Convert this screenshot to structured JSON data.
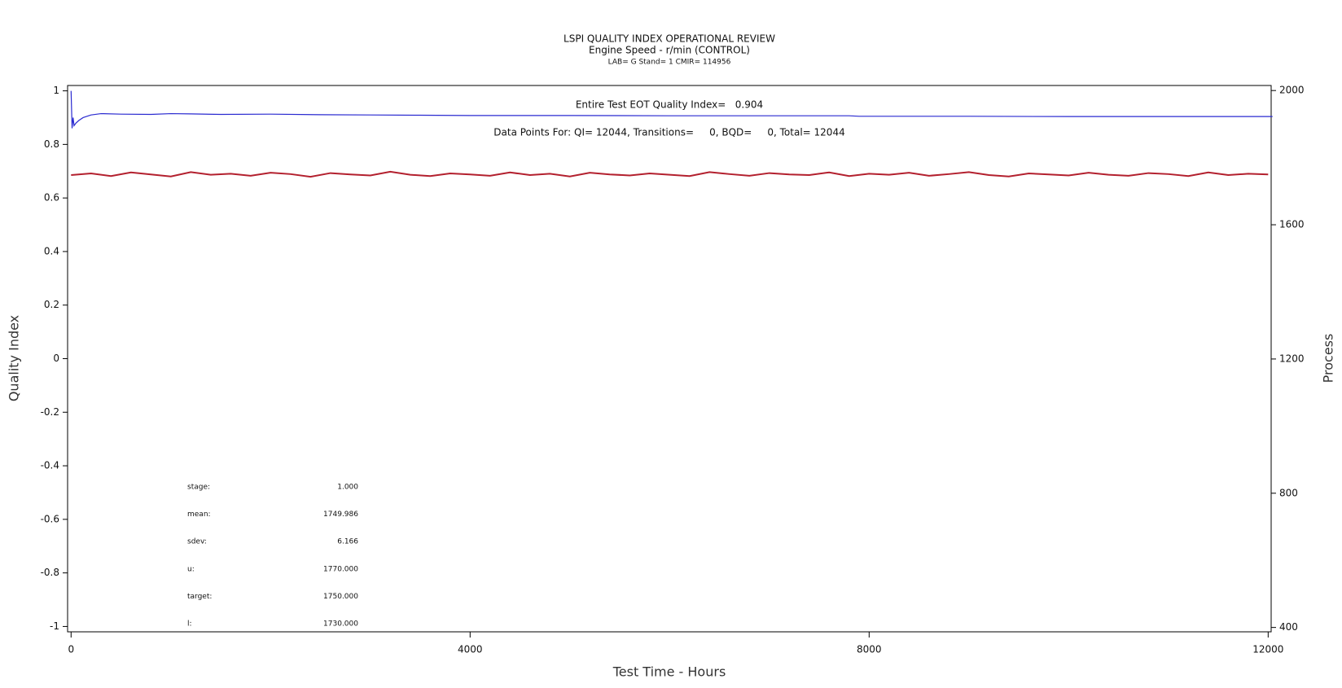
{
  "chart_data": {
    "type": "line",
    "title": "LSPI QUALITY INDEX OPERATIONAL REVIEW",
    "subtitle": "Engine Speed - r/min (CONTROL)",
    "caption": "LAB= G Stand= 1 CMIR= 114956",
    "annotations": [
      "Entire Test EOT Quality Index=   0.904",
      "Data Points For: QI= 12044, Transitions=     0, BQD=     0, Total= 12044"
    ],
    "stats": [
      {
        "label": "stage:",
        "value": "1.000"
      },
      {
        "label": "mean:",
        "value": "1749.986"
      },
      {
        "label": "sdev:",
        "value": "6.166"
      },
      {
        "label": "u:",
        "value": "1770.000"
      },
      {
        "label": "target:",
        "value": "1750.000"
      },
      {
        "label": "l:",
        "value": "1730.000"
      }
    ],
    "x_label": "Test Time - Hours",
    "y_label": "Quality Index",
    "y2_label": "Process",
    "xlim": [
      -35,
      12030
    ],
    "xticks": [
      0,
      4000,
      8000,
      12000
    ],
    "ylim": [
      -1.02,
      1.02
    ],
    "yticks": [
      -1.0,
      -0.8,
      -0.6,
      -0.4,
      -0.2,
      0.0,
      0.2,
      0.4,
      0.6,
      0.8,
      1.0
    ],
    "y2lim": [
      387,
      2015
    ],
    "y2ticks": [
      400,
      800,
      1200,
      1600,
      2000
    ],
    "series": [
      {
        "color": "#2a2ad0",
        "x": [
          0,
          10,
          20,
          30,
          50,
          80,
          120,
          200,
          300,
          500,
          800,
          1000,
          1200,
          1500,
          2000,
          2500,
          3000,
          3500,
          4000,
          5000,
          6000,
          7000,
          7800,
          7900,
          9000,
          10000,
          11000,
          12044
        ],
        "values": [
          1.0,
          0.86,
          0.9,
          0.87,
          0.88,
          0.89,
          0.9,
          0.91,
          0.915,
          0.913,
          0.912,
          0.915,
          0.914,
          0.912,
          0.913,
          0.911,
          0.91,
          0.909,
          0.908,
          0.908,
          0.907,
          0.907,
          0.907,
          0.905,
          0.905,
          0.904,
          0.904,
          0.904
        ]
      },
      {
        "color": "#b3202e",
        "axis": "y2",
        "x": [
          0,
          200,
          400,
          600,
          800,
          1000,
          1200,
          1400,
          1600,
          1800,
          2000,
          2200,
          2400,
          2600,
          2800,
          3000,
          3200,
          3400,
          3600,
          3800,
          4000,
          4200,
          4400,
          4600,
          4800,
          5000,
          5200,
          5400,
          5600,
          5800,
          6000,
          6200,
          6400,
          6600,
          6800,
          7000,
          7200,
          7400,
          7600,
          7800,
          8000,
          8200,
          8400,
          8600,
          8800,
          9000,
          9200,
          9400,
          9600,
          9800,
          10000,
          10200,
          10400,
          10600,
          10800,
          11000,
          11200,
          11400,
          11600,
          11800,
          12000
        ],
        "values": [
          1748,
          1753,
          1745,
          1756,
          1750,
          1744,
          1757,
          1749,
          1752,
          1746,
          1755,
          1751,
          1743,
          1754,
          1750,
          1747,
          1758,
          1749,
          1745,
          1753,
          1750,
          1746,
          1756,
          1748,
          1752,
          1744,
          1755,
          1750,
          1747,
          1753,
          1749,
          1745,
          1757,
          1751,
          1746,
          1754,
          1750,
          1748,
          1756,
          1745,
          1752,
          1749,
          1755,
          1746,
          1751,
          1757,
          1748,
          1744,
          1753,
          1750,
          1747,
          1755,
          1749,
          1746,
          1754,
          1751,
          1745,
          1756,
          1748,
          1752,
          1750
        ]
      }
    ]
  }
}
